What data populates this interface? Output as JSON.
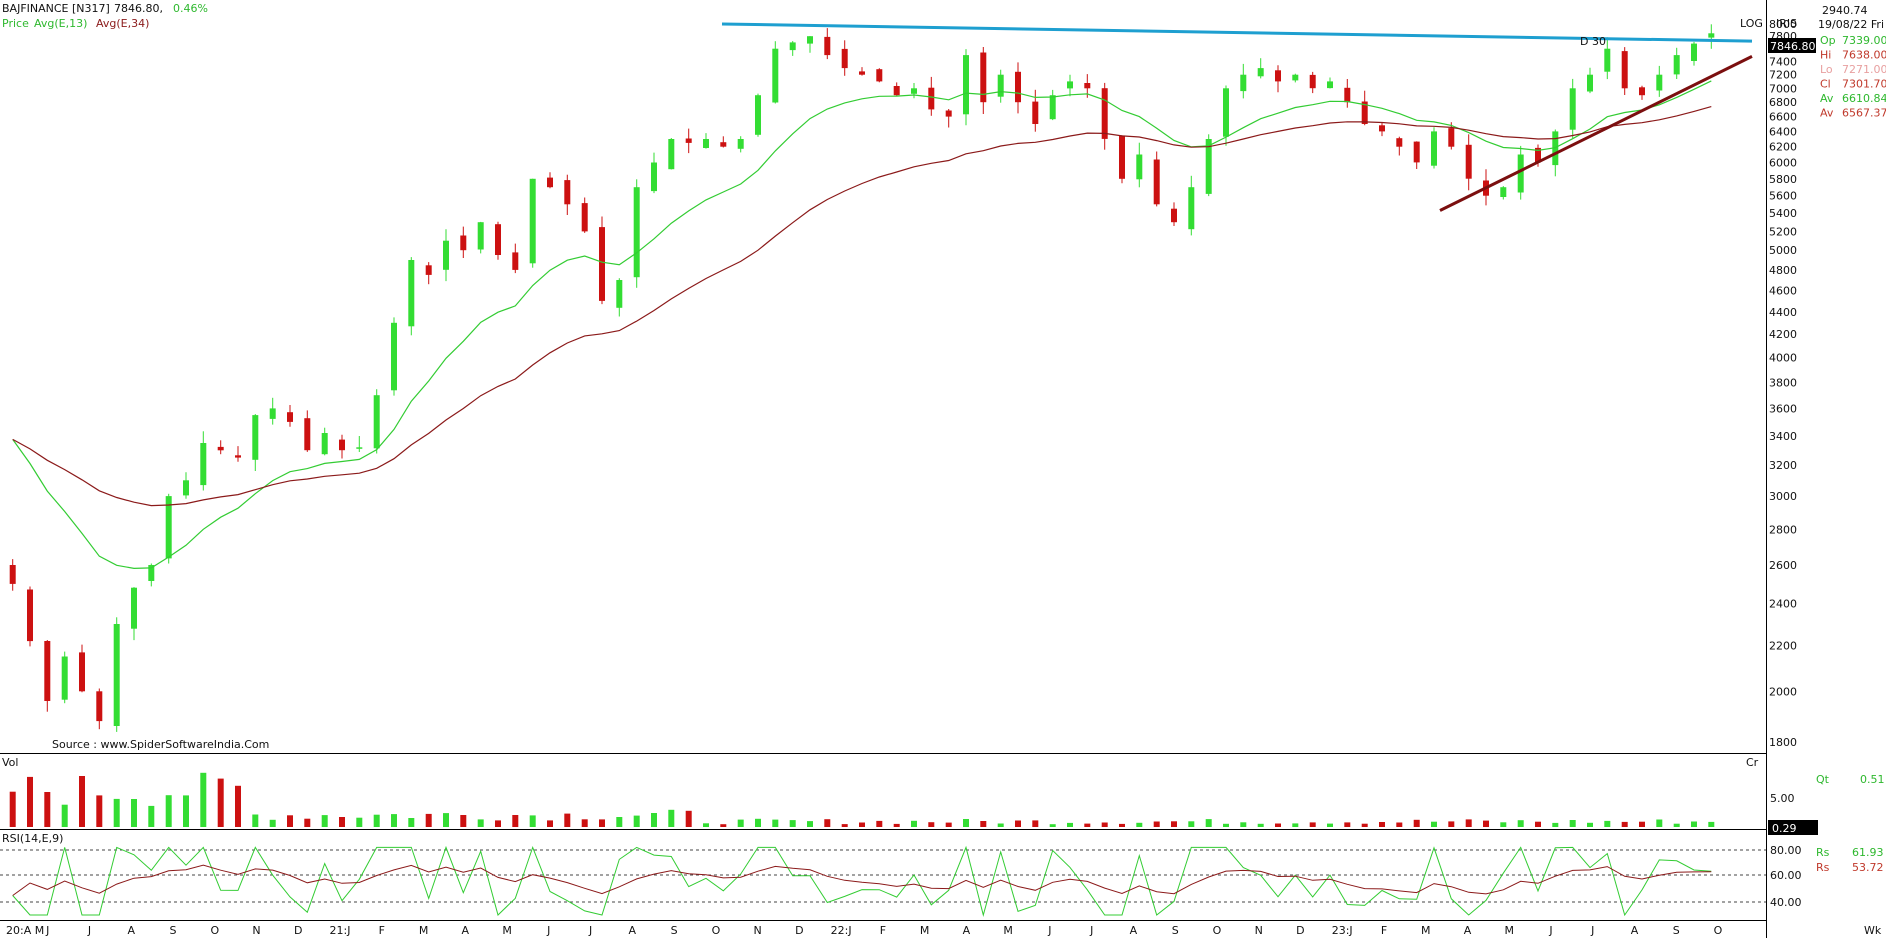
{
  "header": {
    "symbol": "BAJFINANCE [N317]",
    "last": "7846.80,",
    "change": "0.46%",
    "legend_price": "Price",
    "legend_ma1": "Avg(E,13)",
    "legend_ma2": "Avg(E,34)"
  },
  "source": "Source : www.SpiderSoftwareIndia.Com",
  "side_panel": {
    "log": "LOG",
    "iris": "IRIS",
    "value": "2940.74",
    "date": "19/08/22 Fri",
    "current_price_tag": "7846.80",
    "cursor_label": "D 30",
    "ohlc": [
      {
        "label": "Op",
        "value": "7339.00",
        "color": "#2eb82e"
      },
      {
        "label": "Hi",
        "value": "7638.00",
        "color": "#c0392b"
      },
      {
        "label": "Lo",
        "value": "7271.00",
        "color": "#e8a0a0"
      },
      {
        "label": "Cl",
        "value": "7301.70",
        "color": "#c0392b"
      },
      {
        "label": "Av",
        "value": "6610.84",
        "color": "#2eb82e"
      },
      {
        "label": "Av",
        "value": "6567.37",
        "color": "#c0392b"
      }
    ]
  },
  "volume_panel": {
    "label": "Vol",
    "right_label": "Cr",
    "qt_label": "Qt",
    "qt_value": "0.51",
    "axis_tick": "5.00",
    "current_tag": "0.29"
  },
  "rsi_panel": {
    "label": "RSI(14,E,9)",
    "ticks": [
      "80.00",
      "60.00",
      "40.00"
    ],
    "rs1_label": "Rs",
    "rs1_value": "61.93",
    "rs2_label": "Rs",
    "rs2_value": "53.72"
  },
  "footer": {
    "corner": "Wk"
  },
  "colors": {
    "up": "#33dd33",
    "down": "#cc1111",
    "ma_short": "#33cc33",
    "ma_long": "#8b1a1a",
    "resistance": "#1e9fd0",
    "support": "#7b0f0f",
    "axis_text": "#111111"
  },
  "chart_data": {
    "type": "candlestick",
    "scale": "log",
    "ylim": [
      1800,
      8000
    ],
    "yticks": [
      8000,
      7800,
      7600,
      7400,
      7200,
      7000,
      6800,
      6600,
      6400,
      6200,
      6000,
      5800,
      5600,
      5400,
      5200,
      5000,
      4800,
      4600,
      4400,
      4200,
      4000,
      3800,
      3600,
      3400,
      3200,
      3000,
      2800,
      2600,
      2400,
      2200,
      2000,
      1800
    ],
    "months": [
      "20:A M",
      "J",
      "J",
      "A",
      "S",
      "O",
      "N",
      "D",
      "21:J",
      "F",
      "M",
      "A",
      "M",
      "J",
      "J",
      "A",
      "S",
      "O",
      "N",
      "D",
      "22:J",
      "F",
      "M",
      "A",
      "M",
      "J",
      "J",
      "A",
      "S",
      "O",
      "N",
      "D",
      "23:J",
      "F",
      "M",
      "A",
      "M",
      "J",
      "J",
      "A",
      "S",
      "O"
    ],
    "weekly_close": [
      2500,
      2220,
      1960,
      2150,
      2000,
      1880,
      2300,
      2480,
      2600,
      3000,
      3100,
      3350,
      3300,
      3250,
      3550,
      3600,
      3500,
      3300,
      3420,
      3300,
      3320,
      3700,
      4300,
      4900,
      4750,
      5100,
      5000,
      5300,
      4950,
      4800,
      5800,
      5700,
      5500,
      5200,
      4500,
      4700,
      5700,
      6000,
      6300,
      6250,
      6300,
      6200,
      6300,
      6900,
      7600,
      7700,
      7800,
      7500,
      7300,
      7200,
      7100,
      6900,
      7000,
      6700,
      6600,
      7500,
      6800,
      7200,
      6800,
      6500,
      6900,
      7100,
      7000,
      6300,
      5800,
      6100,
      5500,
      5300,
      5700,
      6300,
      7000,
      7200,
      7300,
      7100,
      7200,
      7000,
      7100,
      6800,
      6500,
      6400,
      6200,
      6000,
      6400,
      6200,
      5800,
      5600,
      5700,
      6100,
      6000,
      6400,
      7000,
      7200,
      7600,
      7000,
      6900,
      7200,
      7500,
      7680,
      7846.8
    ],
    "resistance_line": {
      "from": {
        "week": 0.63,
        "price": 8000
      },
      "to": {
        "week": 1.0,
        "price": 7700
      }
    },
    "support_line": {
      "from": {
        "month": "M (23)",
        "price": 5400
      },
      "to": {
        "month": "O (23)",
        "price": 7500
      }
    },
    "volume_tick": 5.0,
    "rsi_levels": [
      80,
      60,
      40
    ]
  }
}
